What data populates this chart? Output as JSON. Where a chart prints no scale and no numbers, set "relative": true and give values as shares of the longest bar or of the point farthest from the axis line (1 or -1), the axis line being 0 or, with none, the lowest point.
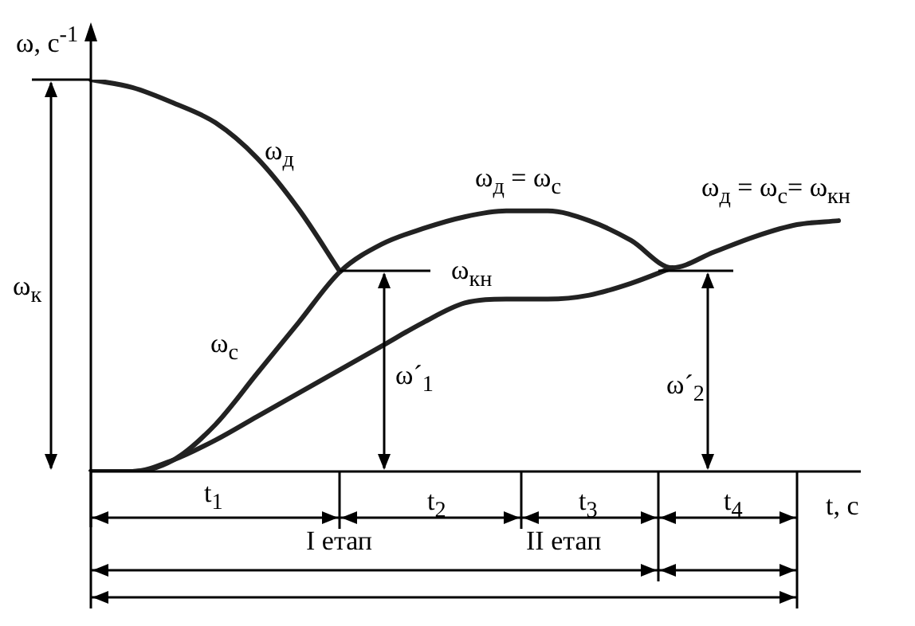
{
  "chart_data": {
    "type": "line",
    "relative": true,
    "marker": "none",
    "ylabel": "ω, с$^{-1}$",
    "xlabel": "t, с",
    "categories": [
      null,
      null,
      null,
      null,
      null,
      null,
      null,
      null,
      null,
      null,
      null,
      null,
      null,
      null,
      null,
      null,
      null,
      null,
      null
    ],
    "series": [
      {
        "name": "ω$_{д}$",
        "color": "#222222",
        "values": [
          1,
          0.98,
          0.94,
          0.89,
          0.8,
          0.67,
          0.51,
          null,
          null,
          null,
          null,
          null,
          null,
          null,
          null,
          null,
          null,
          null,
          null
        ]
      },
      {
        "name": "ω$_{с}$",
        "color": "#222222",
        "values": [
          0,
          0,
          0.03,
          0.12,
          0.25,
          0.38,
          0.51,
          0.58,
          0.62,
          0.65,
          0.665,
          0.665,
          0.64,
          0.59,
          0.52,
          0.56,
          0.6,
          0.63,
          0.64
        ]
      },
      {
        "name": "ω$_{кн}$",
        "color": "#222222",
        "values": [
          0,
          0,
          0.03,
          0.08,
          0.14,
          0.2,
          0.26,
          0.32,
          0.38,
          0.43,
          0.44,
          0.44,
          0.45,
          0.48,
          0.52,
          null,
          null,
          null,
          null
        ]
      }
    ],
    "annotations": [
      "ω$_{к}$",
      "ω$_{д}$ = ω$_{с}$",
      "ω$_{д}$ = ω$_{с}$= ω$_{кн}$",
      "ω´$_{1}$",
      "ω´$_{2}$",
      "t$_{1}$",
      "t$_{2}$",
      "t$_{3}$",
      "t$_{4}$",
      "I  етап",
      "II  етап"
    ]
  }
}
